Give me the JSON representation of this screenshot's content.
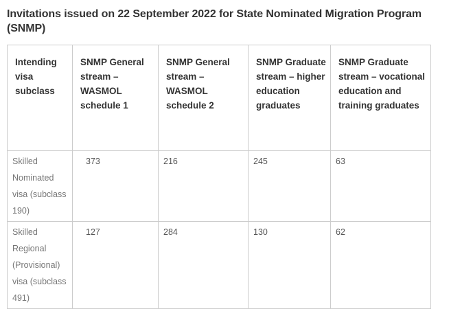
{
  "page": {
    "title": "Invitations issued on 22 September 2022 for State Nominated Migration Program\n(SNMP)"
  },
  "table": {
    "headers": [
      "Intending visa subclass",
      "SNMP General stream – WASMOL schedule 1",
      "SNMP General stream – WASMOL schedule 2",
      "SNMP Graduate stream – higher education graduates",
      "SNMP Graduate stream – vocational education and training graduates"
    ],
    "rows": [
      {
        "label": "Skilled Nominated visa (subclass 190)",
        "values": [
          "373",
          "216",
          "245",
          "63"
        ]
      },
      {
        "label": "Skilled Regional (Provisional) visa (subclass 491)",
        "values": [
          "127",
          "284",
          "130",
          "62"
        ]
      }
    ]
  },
  "theme": {
    "background": "#ffffff",
    "border_color": "#cccccc",
    "title_color": "#333333",
    "header_text_color": "#333333",
    "label_text_color": "#767676",
    "value_text_color": "#555555"
  }
}
